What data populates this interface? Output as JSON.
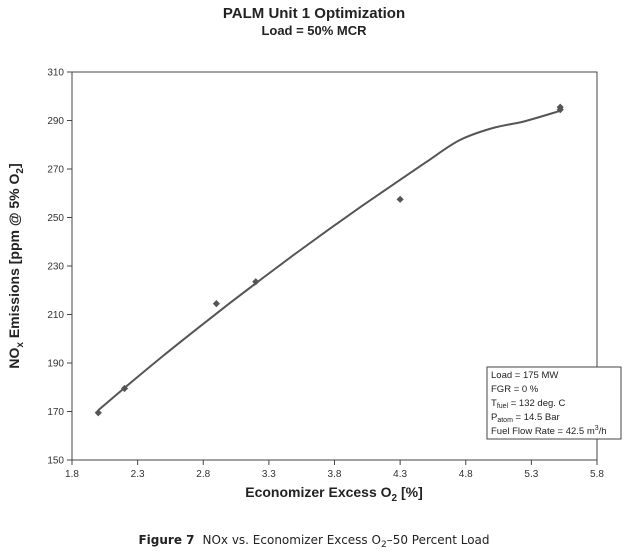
{
  "chart_data": {
    "type": "scatter",
    "title": "PALM Unit 1 Optimization",
    "subtitle": "Load = 50% MCR",
    "xlabel": "Economizer Excess O",
    "xlabel_sub": "2",
    "xlabel_tail": " [%]",
    "ylabel": "NO",
    "ylabel_sub1": "x",
    "ylabel_mid": " Emissions [ppm @ 5% O",
    "ylabel_sub2": "2",
    "ylabel_tail": "]",
    "xlim": [
      1.8,
      5.8
    ],
    "ylim": [
      150,
      310
    ],
    "xticks": [
      "1.8",
      "2.3",
      "2.8",
      "3.3",
      "3.8",
      "4.3",
      "4.8",
      "5.3",
      "5.8"
    ],
    "yticks": [
      "150",
      "170",
      "190",
      "210",
      "230",
      "250",
      "270",
      "290",
      "310"
    ],
    "grid": false,
    "series": [
      {
        "points": [
          {
            "x": 2.0,
            "y": 169.5
          },
          {
            "x": 2.2,
            "y": 179.5
          },
          {
            "x": 2.9,
            "y": 214.5
          },
          {
            "x": 3.2,
            "y": 223.5
          },
          {
            "x": 4.3,
            "y": 257.5
          },
          {
            "x": 5.52,
            "y": 294.5
          },
          {
            "x": 5.52,
            "y": 295.5
          }
        ]
      }
    ],
    "trendline": {
      "type": "power",
      "x": [
        2.0,
        2.25,
        2.5,
        2.75,
        3.0,
        3.25,
        3.5,
        3.75,
        4.0,
        4.25,
        4.5,
        4.75,
        5.0,
        5.25,
        5.52
      ],
      "y": [
        170.5,
        182.0,
        193.2,
        204.0,
        214.6,
        224.9,
        235.0,
        244.8,
        254.4,
        263.7,
        272.9,
        281.8,
        286.8,
        289.7,
        294.0
      ]
    },
    "annotation": {
      "load": "Load = 175 MW",
      "fgr": "FGR = 0 %",
      "tfuel_pre": "T",
      "tfuel_sub": "fuel",
      "tfuel_post": " = 132 deg. C",
      "patom_pre": "P",
      "patom_sub": "atom",
      "patom_post": " = 14.5 Bar",
      "flow_pre": "Fuel Flow Rate = 42.5 m",
      "flow_sup": "3",
      "flow_post": "/h"
    }
  },
  "caption": {
    "label": "Figure 7",
    "text_pre": "NOx vs. Economizer Excess O",
    "text_sub": "2",
    "text_post": "–50 Percent Load"
  }
}
